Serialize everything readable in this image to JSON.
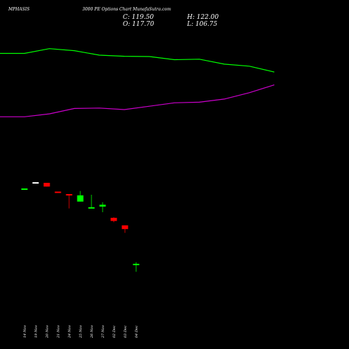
{
  "header": {
    "symbol": "MPHASIS",
    "subtitle": "3000 PE Options Chart MunafaSutra.com",
    "close_label": "C: 119.50",
    "open_label": "O: 117.70",
    "high_label": "H: 122.00",
    "low_label": "L: 106.75"
  },
  "colors": {
    "background": "#000000",
    "up": "#00ff00",
    "down": "#ff0000",
    "upper_band": "#00ff00",
    "lower_band": "#cc00cc",
    "text": "#ffffff"
  },
  "chart_data": {
    "type": "candlestick",
    "title": "3000 PE Options Chart MunafaSutra.com",
    "categories": [
      "14 Nov",
      "19 Nov",
      "20 Nov",
      "21 Nov",
      "24 Nov",
      "25 Nov",
      "26 Nov",
      "27 Nov",
      "02 Dec",
      "03 Dec",
      "04 Dec"
    ],
    "price_range": [
      90,
      280
    ],
    "candles": [
      {
        "date": "14 Nov",
        "open": 239,
        "high": 240,
        "low": 238,
        "close": 240
      },
      {
        "date": "19 Nov",
        "open": 250,
        "high": 250,
        "low": 249,
        "close": 250
      },
      {
        "date": "20 Nov",
        "open": 249,
        "high": 249,
        "low": 243,
        "close": 243
      },
      {
        "date": "21 Nov",
        "open": 235,
        "high": 235,
        "low": 234,
        "close": 234
      },
      {
        "date": "24 Nov",
        "open": 231,
        "high": 231,
        "low": 208,
        "close": 229
      },
      {
        "date": "25 Nov",
        "open": 219,
        "high": 236,
        "low": 219,
        "close": 229
      },
      {
        "date": "26 Nov",
        "open": 209,
        "high": 230,
        "low": 209,
        "close": 210
      },
      {
        "date": "27 Nov",
        "open": 211,
        "high": 218,
        "low": 202,
        "close": 214
      },
      {
        "date": "02 Dec",
        "open": 193,
        "high": 194,
        "low": 186,
        "close": 188
      },
      {
        "date": "03 Dec",
        "open": 181,
        "high": 181,
        "low": 169,
        "close": 175
      },
      {
        "date": "04 Dec",
        "open": 117.7,
        "high": 122,
        "low": 106.75,
        "close": 119.5
      }
    ],
    "upper_band": [
      700,
      700,
      721,
      712,
      692,
      687,
      686,
      672,
      674,
      652,
      643,
      617
    ],
    "lower_band": [
      418,
      418,
      431,
      455,
      457,
      450,
      465,
      480,
      483,
      497,
      525,
      560
    ],
    "band_x_dates": [
      "14 Nov",
      "19 Nov",
      "20 Nov",
      "21 Nov",
      "24 Nov",
      "25 Nov",
      "26 Nov",
      "27 Nov",
      "02 Dec",
      "03 Dec",
      "04 Dec",
      "end"
    ],
    "grid": false,
    "legend": "none"
  }
}
